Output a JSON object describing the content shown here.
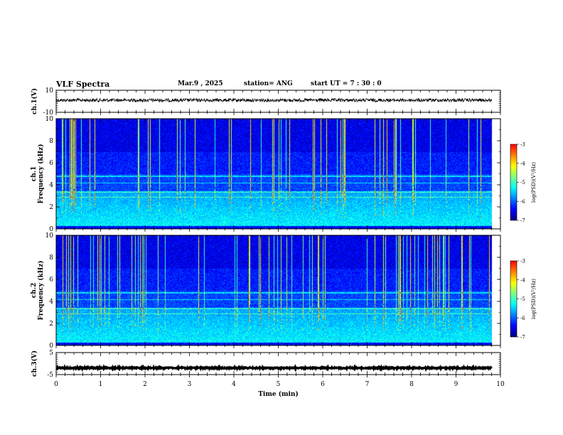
{
  "header": {
    "title": "VLF Spectra",
    "date": "Mar.9 , 2025",
    "station": "station= ANG",
    "start_ut": "start UT = 7 : 30 : 0"
  },
  "colormap": [
    "#00007f",
    "#0000ff",
    "#007fff",
    "#00ffff",
    "#7fff7f",
    "#ffff00",
    "#ff7f00",
    "#ff0000",
    "#ffffff"
  ],
  "chart_data": [
    {
      "type": "line",
      "panel": "ch1-waveform",
      "ylabel": "ch.1(V)",
      "ylim": [
        -10,
        10
      ],
      "yticks": [
        "10",
        "-10"
      ],
      "xlim": [
        0,
        10
      ],
      "trace_level": 1,
      "trace_amplitude": 1.5,
      "trace_end": 9.8
    },
    {
      "type": "heatmap",
      "panel": "ch1-spectrogram",
      "ylabel": "ch.1 Frequency (kHz)",
      "ylim": [
        0,
        10
      ],
      "yticks": [
        "0",
        "2",
        "4",
        "6",
        "8",
        "10"
      ],
      "xlim": [
        0,
        10
      ],
      "data_end": 9.8,
      "colorbar": {
        "label": "log(PSD)(V²/Hz)",
        "range": [
          -7,
          -3
        ],
        "ticks": [
          "-3",
          "-4",
          "-5",
          "-6",
          "-7"
        ]
      }
    },
    {
      "type": "heatmap",
      "panel": "ch2-spectrogram",
      "ylabel": "ch.2 Frequency (kHz)",
      "ylim": [
        0,
        10
      ],
      "yticks": [
        "0",
        "2",
        "4",
        "6",
        "8",
        "10"
      ],
      "xlim": [
        0,
        10
      ],
      "data_end": 9.8,
      "colorbar": {
        "label": "log(PSD)(V²/Hz)",
        "range": [
          -7,
          -3
        ],
        "ticks": [
          "-3",
          "-4",
          "-5",
          "-6",
          "-7"
        ]
      }
    },
    {
      "type": "line",
      "panel": "ch3-waveform",
      "ylabel": "ch.3(V)",
      "ylim": [
        -5,
        5
      ],
      "yticks": [
        "5",
        "-5"
      ],
      "xlim": [
        0,
        10
      ],
      "trace_level": -2,
      "trace_amplitude": 0.3,
      "trace_end": 9.8,
      "xlabel": "Time (min)",
      "xticks": [
        "0",
        "1",
        "2",
        "3",
        "4",
        "5",
        "6",
        "7",
        "8",
        "9",
        "10"
      ]
    }
  ]
}
